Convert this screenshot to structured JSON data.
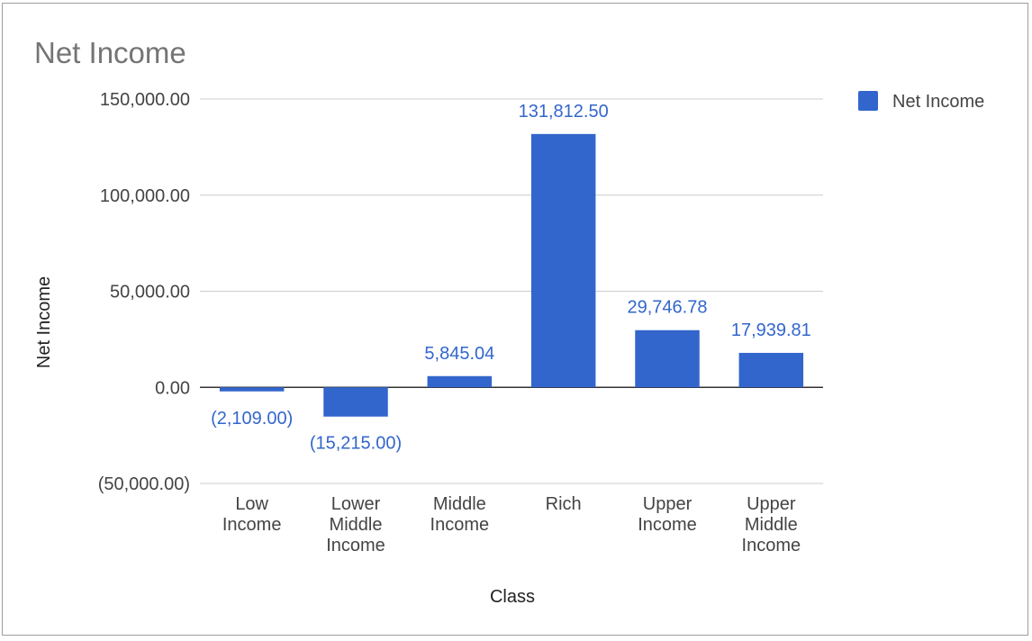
{
  "chart_data": {
    "type": "bar",
    "title": "Net Income",
    "xlabel": "Class",
    "ylabel": "Net Income",
    "categories": [
      [
        "Low",
        "Income"
      ],
      [
        "Lower",
        "Middle",
        "Income"
      ],
      [
        "Middle",
        "Income"
      ],
      [
        "Rich"
      ],
      [
        "Upper",
        "Income"
      ],
      [
        "Upper",
        "Middle",
        "Income"
      ]
    ],
    "series": [
      {
        "name": "Net Income",
        "values": [
          -2109.0,
          -15215.0,
          5845.04,
          131812.5,
          29746.78,
          17939.81
        ],
        "labels": [
          "(2,109.00)",
          "(15,215.00)",
          "5,845.04",
          "131,812.50",
          "29,746.78",
          "17,939.81"
        ]
      }
    ],
    "ylim": [
      -50000,
      150000
    ],
    "yticks": [
      150000,
      100000,
      50000,
      0,
      -50000
    ],
    "ytick_labels": [
      "150,000.00",
      "100,000.00",
      "50,000.00",
      "0.00",
      "(50,000.00)"
    ],
    "grid": true,
    "legend_position": "top-right",
    "colors": {
      "bar": "#3366cc",
      "data_label": "#3366cc",
      "grid": "#cccccc",
      "zero_line": "#333333",
      "text": "#444444",
      "title": "#757575"
    }
  }
}
